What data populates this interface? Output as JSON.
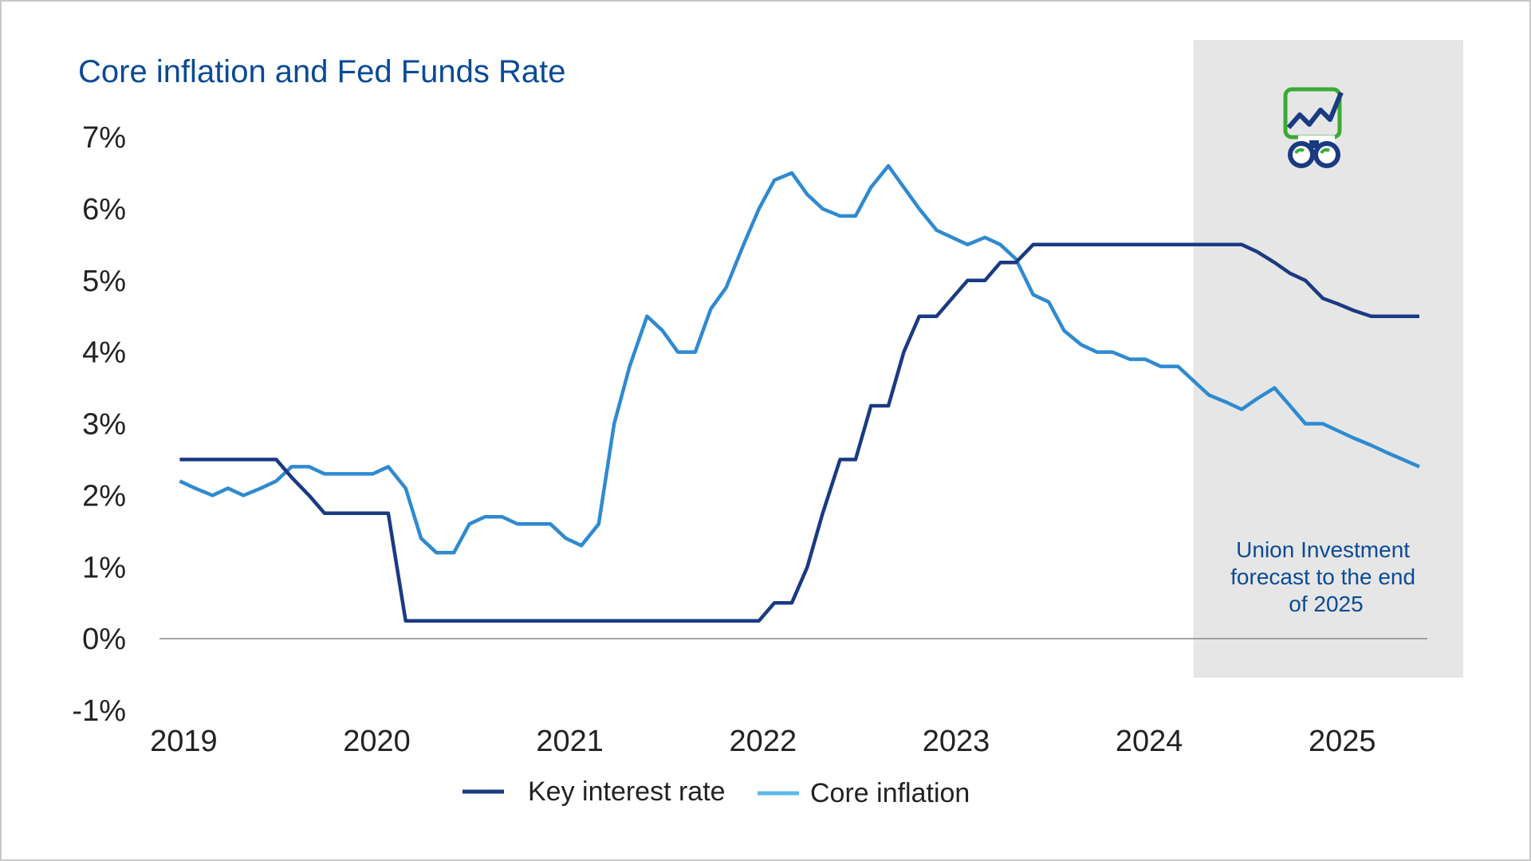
{
  "colors": {
    "key_rate": "#1a3a82",
    "core_inflation": "#2f8ad0",
    "legend_core_inflation": "#5bbbe8",
    "title": "#0a4a96",
    "forecast_band": "#e6e6e6",
    "icon_green": "#3aaa35",
    "icon_navy": "#1a3a82"
  },
  "forecast": {
    "note_lines": [
      "Union Investment",
      "forecast to the end",
      "of 2025"
    ],
    "band_start": 2024.25,
    "icon": "chart-binoculars-icon"
  },
  "chart_data": {
    "type": "line",
    "title": "Core inflation and Fed Funds Rate",
    "xlabel": "",
    "ylabel": "",
    "xlim": [
      2018.92,
      2025.42
    ],
    "ylim": [
      -1,
      7
    ],
    "y_ticks": [
      "-1%",
      "0%",
      "1%",
      "2%",
      "3%",
      "4%",
      "5%",
      "6%",
      "7%"
    ],
    "y_tick_values": [
      -1,
      0,
      1,
      2,
      3,
      4,
      5,
      6,
      7
    ],
    "x_ticks": [
      "2019",
      "2020",
      "2021",
      "2022",
      "2023",
      "2024",
      "2025"
    ],
    "x_tick_values": [
      2019,
      2020,
      2021,
      2022,
      2023,
      2024,
      2025
    ],
    "grid": false,
    "legend": "bottom",
    "series": [
      {
        "name": "Key interest rate",
        "x": [
          2019.0,
          2019.08,
          2019.17,
          2019.25,
          2019.33,
          2019.42,
          2019.5,
          2019.58,
          2019.67,
          2019.75,
          2019.83,
          2019.92,
          2020.0,
          2020.08,
          2020.17,
          2020.25,
          2021.0,
          2022.0,
          2022.08,
          2022.17,
          2022.25,
          2022.33,
          2022.42,
          2022.5,
          2022.58,
          2022.67,
          2022.75,
          2022.83,
          2022.92,
          2023.0,
          2023.08,
          2023.17,
          2023.25,
          2023.33,
          2023.42,
          2023.5,
          2023.58,
          2024.0,
          2024.5,
          2024.58,
          2024.67,
          2024.75,
          2024.83,
          2024.92,
          2025.0,
          2025.08,
          2025.17,
          2025.25,
          2025.42
        ],
        "y": [
          2.5,
          2.5,
          2.5,
          2.5,
          2.5,
          2.5,
          2.5,
          2.25,
          2.0,
          1.75,
          1.75,
          1.75,
          1.75,
          1.75,
          0.25,
          0.25,
          0.25,
          0.25,
          0.5,
          0.5,
          1.0,
          1.75,
          2.5,
          2.5,
          3.25,
          3.25,
          4.0,
          4.5,
          4.5,
          4.75,
          5.0,
          5.0,
          5.25,
          5.25,
          5.5,
          5.5,
          5.5,
          5.5,
          5.5,
          5.4,
          5.25,
          5.1,
          5.0,
          4.75,
          4.67,
          4.58,
          4.5,
          4.5,
          4.5
        ]
      },
      {
        "name": "Core inflation",
        "x": [
          2019.0,
          2019.08,
          2019.17,
          2019.25,
          2019.33,
          2019.42,
          2019.5,
          2019.58,
          2019.67,
          2019.75,
          2019.83,
          2019.92,
          2020.0,
          2020.08,
          2020.17,
          2020.25,
          2020.33,
          2020.42,
          2020.5,
          2020.58,
          2020.67,
          2020.75,
          2020.83,
          2020.92,
          2021.0,
          2021.08,
          2021.17,
          2021.25,
          2021.33,
          2021.42,
          2021.5,
          2021.58,
          2021.67,
          2021.75,
          2021.83,
          2021.92,
          2022.0,
          2022.08,
          2022.17,
          2022.25,
          2022.33,
          2022.42,
          2022.5,
          2022.58,
          2022.67,
          2022.75,
          2022.83,
          2022.92,
          2023.0,
          2023.08,
          2023.17,
          2023.25,
          2023.33,
          2023.42,
          2023.5,
          2023.58,
          2023.67,
          2023.75,
          2023.83,
          2023.92,
          2024.0,
          2024.08,
          2024.17,
          2024.25,
          2024.33,
          2024.42,
          2024.5,
          2024.58,
          2024.67,
          2024.75,
          2024.83,
          2024.92,
          2025.0,
          2025.08,
          2025.17,
          2025.25,
          2025.42
        ],
        "y": [
          2.2,
          2.1,
          2.0,
          2.1,
          2.0,
          2.1,
          2.2,
          2.4,
          2.4,
          2.3,
          2.3,
          2.3,
          2.3,
          2.4,
          2.1,
          1.4,
          1.2,
          1.2,
          1.6,
          1.7,
          1.7,
          1.6,
          1.6,
          1.6,
          1.4,
          1.3,
          1.6,
          3.0,
          3.8,
          4.5,
          4.3,
          4.0,
          4.0,
          4.6,
          4.9,
          5.5,
          6.0,
          6.4,
          6.5,
          6.2,
          6.0,
          5.9,
          5.9,
          6.3,
          6.6,
          6.3,
          6.0,
          5.7,
          5.6,
          5.5,
          5.6,
          5.5,
          5.3,
          4.8,
          4.7,
          4.3,
          4.1,
          4.0,
          4.0,
          3.9,
          3.9,
          3.8,
          3.8,
          3.6,
          3.4,
          3.3,
          3.2,
          3.35,
          3.5,
          3.25,
          3.0,
          3.0,
          2.9,
          2.8,
          2.7,
          2.6,
          2.4
        ]
      }
    ]
  }
}
